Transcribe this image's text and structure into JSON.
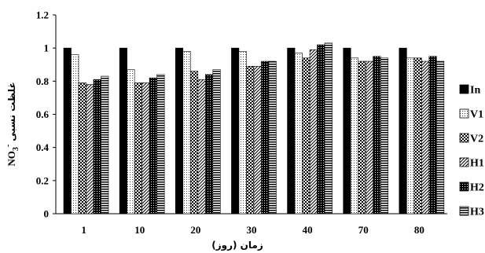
{
  "chart_data": {
    "type": "bar",
    "categories": [
      "1",
      "10",
      "20",
      "30",
      "40",
      "70",
      "80"
    ],
    "series": [
      {
        "name": "In",
        "values": [
          1.0,
          1.0,
          1.0,
          1.0,
          1.0,
          1.0,
          1.0
        ]
      },
      {
        "name": "V1",
        "values": [
          0.96,
          0.87,
          0.98,
          0.98,
          0.97,
          0.94,
          0.94
        ]
      },
      {
        "name": "V2",
        "values": [
          0.79,
          0.79,
          0.86,
          0.89,
          0.94,
          0.92,
          0.94
        ]
      },
      {
        "name": "H1",
        "values": [
          0.78,
          0.79,
          0.81,
          0.89,
          0.99,
          0.92,
          0.92
        ]
      },
      {
        "name": "H2",
        "values": [
          0.81,
          0.82,
          0.84,
          0.92,
          1.02,
          0.95,
          0.95
        ]
      },
      {
        "name": "H3",
        "values": [
          0.83,
          0.84,
          0.87,
          0.92,
          1.03,
          0.94,
          0.92
        ]
      }
    ],
    "xlabel": "زمان (روز)",
    "ylabel_text": "غلظت نسبی",
    "ylabel_formula": "NO",
    "ylabel_subscript": "3",
    "ylabel_superscript": "-",
    "ylim": [
      0,
      1.2
    ],
    "yticks": [
      "0",
      "0.2",
      "0.4",
      "0.6",
      "0.8",
      "1",
      "1.2"
    ],
    "grid": false,
    "legend_position": "right",
    "patterns": [
      "solid-black",
      "dotted",
      "checker",
      "diagonal-hatch",
      "dense-checker",
      "horizontal-lines"
    ]
  }
}
